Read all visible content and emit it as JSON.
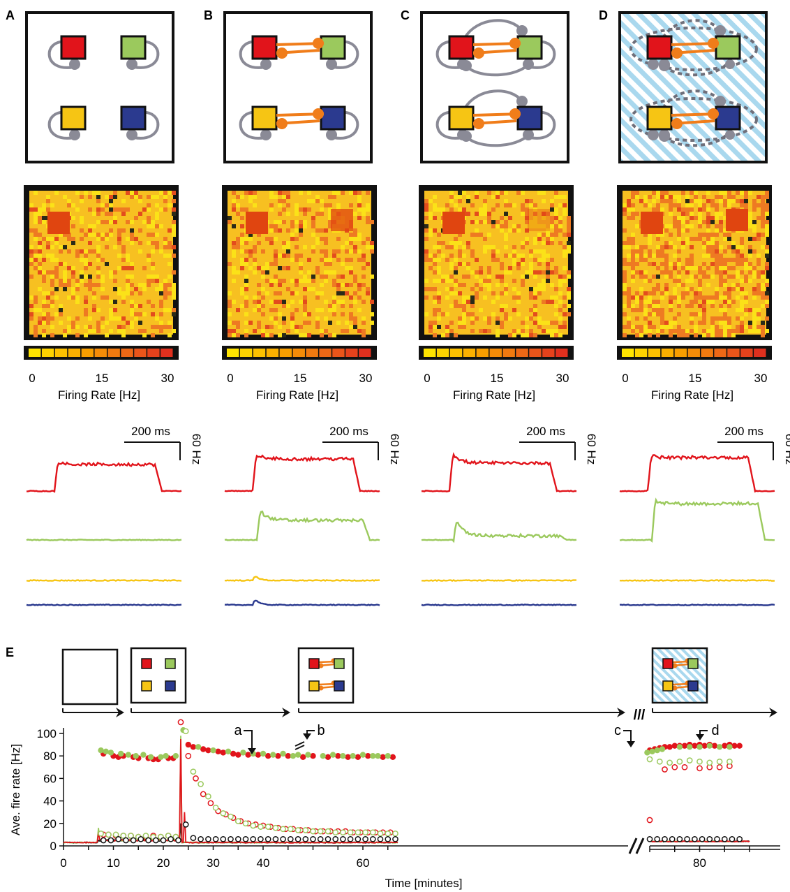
{
  "panels": [
    {
      "label": "A",
      "network": "isolated",
      "background": "white"
    },
    {
      "label": "B",
      "network": "coupled",
      "background": "white"
    },
    {
      "label": "C",
      "network": "coupled-cross-feedback",
      "background": "white"
    },
    {
      "label": "D",
      "network": "coupled-cross-feedback-dashed",
      "background": "striped-blue"
    }
  ],
  "colorbar": {
    "ticks": [
      "0",
      "15",
      "30"
    ],
    "title": "Firing Rate [Hz]"
  },
  "scalebar": {
    "time_label": "200 ms",
    "rate_label": "60 Hz"
  },
  "populations": [
    {
      "name": "red",
      "color": "#e1141b"
    },
    {
      "name": "green",
      "color": "#9bc95d"
    },
    {
      "name": "yellow",
      "color": "#f6c514"
    },
    {
      "name": "blue",
      "color": "#2b3a8f"
    }
  ],
  "colors": {
    "coupling": "#f07d1a",
    "feedback": "#8a8a96",
    "stripe": "#a9d8ee"
  },
  "panel_e": {
    "label": "E",
    "annotations": [
      "a",
      "b",
      "c",
      "d"
    ],
    "break_mark": "///"
  },
  "chart_data": {
    "type": "scatter",
    "title": "",
    "xlabel": "Time [minutes]",
    "ylabel": "Ave. fire rate [Hz]",
    "xlim": [
      0,
      90
    ],
    "ylim": [
      0,
      100
    ],
    "xticks": [
      "0",
      "10",
      "20",
      "30",
      "40",
      "60",
      "80"
    ],
    "yticks": [
      "0",
      "20",
      "40",
      "60",
      "80",
      "100"
    ],
    "axis_break_between_minutes": [
      67,
      70
    ],
    "series": [
      {
        "marker": "filled",
        "color": "#e1141b",
        "x": [
          8,
          10,
          11,
          12,
          14,
          15,
          17,
          18,
          19,
          21,
          22,
          25,
          26,
          28,
          29,
          31,
          32,
          34,
          35,
          37,
          39,
          41,
          43,
          45,
          48,
          50,
          53,
          55,
          57,
          59,
          61,
          64,
          66,
          70,
          71,
          72,
          73,
          74,
          75,
          76,
          77,
          78,
          79,
          80,
          81,
          82,
          83,
          85,
          86,
          87,
          88
        ],
        "y": [
          82,
          80,
          79,
          80,
          79,
          78,
          78,
          77,
          77,
          78,
          78,
          90,
          88,
          86,
          85,
          84,
          83,
          82,
          81,
          81,
          81,
          80,
          80,
          80,
          79,
          80,
          79,
          80,
          79,
          79,
          80,
          79,
          79,
          85,
          86,
          87,
          88,
          88,
          89,
          89,
          89,
          90,
          89,
          90,
          89,
          90,
          89,
          89,
          90,
          89,
          89
        ]
      },
      {
        "marker": "filled",
        "color": "#9bc95d",
        "x": [
          7.5,
          8.5,
          9.5,
          11.5,
          13,
          14.5,
          16,
          17.5,
          19.5,
          20.5,
          22.5,
          24,
          27,
          30,
          33,
          36,
          38,
          40,
          42,
          44,
          46,
          47,
          49,
          52,
          54,
          56,
          58,
          60,
          62,
          63,
          65,
          69.5,
          70.5,
          71.5,
          72.5,
          76,
          78,
          80,
          82,
          84,
          86
        ],
        "y": [
          85,
          84,
          83,
          82,
          81,
          80,
          81,
          79,
          79,
          80,
          80,
          103,
          88,
          85,
          84,
          83,
          82,
          82,
          81,
          82,
          80,
          81,
          81,
          80,
          81,
          80,
          80,
          81,
          80,
          80,
          80,
          83,
          84,
          85,
          86,
          88,
          88,
          88,
          89,
          88,
          88
        ]
      },
      {
        "marker": "open",
        "color": "#e1141b",
        "x": [
          8,
          9,
          10.5,
          12,
          13.5,
          15,
          16.5,
          18,
          19.5,
          21,
          22.5,
          23.5,
          25,
          26.5,
          28,
          29.5,
          31,
          32.5,
          34,
          35.5,
          37,
          38.5,
          40,
          41.5,
          43,
          44.5,
          46,
          47.5,
          49,
          50.5,
          52,
          53.5,
          55,
          56.5,
          58,
          59.5,
          61,
          62.5,
          64,
          65.5,
          70,
          73,
          75,
          77,
          80,
          82,
          84,
          86
        ],
        "y": [
          10,
          10,
          9,
          9,
          9,
          8,
          8,
          9,
          8,
          9,
          8,
          110,
          80,
          60,
          46,
          38,
          31,
          28,
          25,
          22,
          20,
          19,
          18,
          17,
          16,
          15,
          15,
          14,
          14,
          13,
          13,
          13,
          13,
          13,
          12,
          12,
          12,
          12,
          12,
          12,
          23,
          68,
          70,
          70,
          69,
          70,
          70,
          71
        ]
      },
      {
        "marker": "open",
        "color": "#9bc95d",
        "x": [
          7.5,
          9,
          10.5,
          12,
          13.5,
          15,
          16.5,
          18,
          19.5,
          21,
          22.5,
          24.5,
          26,
          27.5,
          29,
          30.5,
          32,
          33.5,
          35,
          36.5,
          38,
          39.5,
          41,
          42.5,
          44,
          45.5,
          47,
          48.5,
          50,
          51.5,
          53,
          54.5,
          56,
          57.5,
          59,
          60.5,
          62,
          63.5,
          65,
          66.5,
          70,
          72,
          74,
          76,
          78,
          80,
          82,
          84,
          86
        ],
        "y": [
          11,
          10,
          10,
          9,
          9,
          8,
          9,
          8,
          8,
          9,
          8,
          102,
          66,
          55,
          44,
          34,
          29,
          26,
          22,
          20,
          18,
          17,
          17,
          16,
          15,
          15,
          14,
          14,
          13,
          13,
          13,
          12,
          12,
          12,
          12,
          12,
          12,
          11,
          11,
          11,
          77,
          75,
          74,
          75,
          76,
          75,
          74,
          75,
          75
        ]
      },
      {
        "marker": "open",
        "color": "#111111",
        "x": [
          8,
          9.5,
          11,
          12.5,
          14,
          15.5,
          17,
          18.5,
          20,
          21.5,
          23,
          24.5,
          26,
          27.5,
          29,
          30.5,
          32,
          33.5,
          35,
          36.5,
          38,
          39.5,
          41,
          42.5,
          44,
          45.5,
          47,
          48.5,
          50,
          51.5,
          53,
          54.5,
          56,
          57.5,
          59,
          60.5,
          62,
          63.5,
          65,
          66.5,
          70,
          71.5,
          73,
          74.5,
          76,
          77.5,
          79,
          80.5,
          82,
          83.5,
          85,
          86.5,
          88
        ],
        "y": [
          5,
          5,
          6,
          5,
          5,
          6,
          5,
          5,
          5,
          6,
          5,
          19,
          7,
          6,
          6,
          6,
          6,
          6,
          6,
          6,
          6,
          6,
          6,
          6,
          6,
          6,
          6,
          6,
          6,
          6,
          6,
          6,
          6,
          6,
          6,
          6,
          6,
          6,
          6,
          6,
          6,
          6,
          6,
          6,
          6,
          6,
          6,
          6,
          6,
          6,
          6,
          6,
          6
        ]
      }
    ]
  }
}
